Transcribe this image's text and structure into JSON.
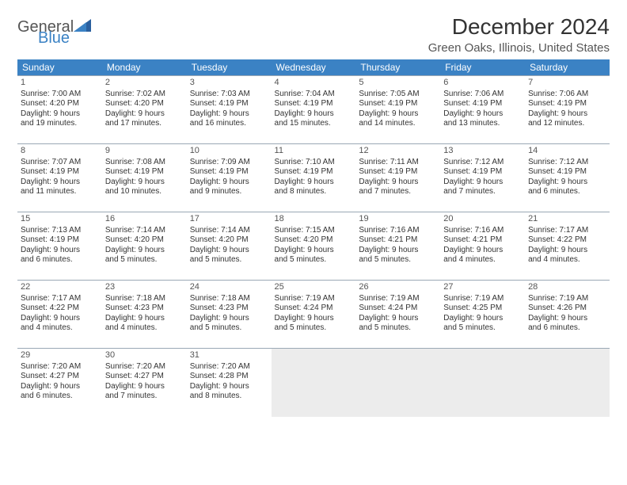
{
  "brand": {
    "word1": "General",
    "word2": "Blue"
  },
  "title": "December 2024",
  "location": "Green Oaks, Illinois, United States",
  "colors": {
    "header_bg": "#3b82c4",
    "header_text": "#ffffff",
    "border": "#9aa8b5",
    "empty_bg": "#ececec",
    "body_text": "#333333",
    "muted_text": "#555555",
    "brand_blue": "#3b82c4"
  },
  "weekdays": [
    "Sunday",
    "Monday",
    "Tuesday",
    "Wednesday",
    "Thursday",
    "Friday",
    "Saturday"
  ],
  "weeks": [
    [
      {
        "day": "1",
        "sunrise": "Sunrise: 7:00 AM",
        "sunset": "Sunset: 4:20 PM",
        "daylight1": "Daylight: 9 hours",
        "daylight2": "and 19 minutes."
      },
      {
        "day": "2",
        "sunrise": "Sunrise: 7:02 AM",
        "sunset": "Sunset: 4:20 PM",
        "daylight1": "Daylight: 9 hours",
        "daylight2": "and 17 minutes."
      },
      {
        "day": "3",
        "sunrise": "Sunrise: 7:03 AM",
        "sunset": "Sunset: 4:19 PM",
        "daylight1": "Daylight: 9 hours",
        "daylight2": "and 16 minutes."
      },
      {
        "day": "4",
        "sunrise": "Sunrise: 7:04 AM",
        "sunset": "Sunset: 4:19 PM",
        "daylight1": "Daylight: 9 hours",
        "daylight2": "and 15 minutes."
      },
      {
        "day": "5",
        "sunrise": "Sunrise: 7:05 AM",
        "sunset": "Sunset: 4:19 PM",
        "daylight1": "Daylight: 9 hours",
        "daylight2": "and 14 minutes."
      },
      {
        "day": "6",
        "sunrise": "Sunrise: 7:06 AM",
        "sunset": "Sunset: 4:19 PM",
        "daylight1": "Daylight: 9 hours",
        "daylight2": "and 13 minutes."
      },
      {
        "day": "7",
        "sunrise": "Sunrise: 7:06 AM",
        "sunset": "Sunset: 4:19 PM",
        "daylight1": "Daylight: 9 hours",
        "daylight2": "and 12 minutes."
      }
    ],
    [
      {
        "day": "8",
        "sunrise": "Sunrise: 7:07 AM",
        "sunset": "Sunset: 4:19 PM",
        "daylight1": "Daylight: 9 hours",
        "daylight2": "and 11 minutes."
      },
      {
        "day": "9",
        "sunrise": "Sunrise: 7:08 AM",
        "sunset": "Sunset: 4:19 PM",
        "daylight1": "Daylight: 9 hours",
        "daylight2": "and 10 minutes."
      },
      {
        "day": "10",
        "sunrise": "Sunrise: 7:09 AM",
        "sunset": "Sunset: 4:19 PM",
        "daylight1": "Daylight: 9 hours",
        "daylight2": "and 9 minutes."
      },
      {
        "day": "11",
        "sunrise": "Sunrise: 7:10 AM",
        "sunset": "Sunset: 4:19 PM",
        "daylight1": "Daylight: 9 hours",
        "daylight2": "and 8 minutes."
      },
      {
        "day": "12",
        "sunrise": "Sunrise: 7:11 AM",
        "sunset": "Sunset: 4:19 PM",
        "daylight1": "Daylight: 9 hours",
        "daylight2": "and 7 minutes."
      },
      {
        "day": "13",
        "sunrise": "Sunrise: 7:12 AM",
        "sunset": "Sunset: 4:19 PM",
        "daylight1": "Daylight: 9 hours",
        "daylight2": "and 7 minutes."
      },
      {
        "day": "14",
        "sunrise": "Sunrise: 7:12 AM",
        "sunset": "Sunset: 4:19 PM",
        "daylight1": "Daylight: 9 hours",
        "daylight2": "and 6 minutes."
      }
    ],
    [
      {
        "day": "15",
        "sunrise": "Sunrise: 7:13 AM",
        "sunset": "Sunset: 4:19 PM",
        "daylight1": "Daylight: 9 hours",
        "daylight2": "and 6 minutes."
      },
      {
        "day": "16",
        "sunrise": "Sunrise: 7:14 AM",
        "sunset": "Sunset: 4:20 PM",
        "daylight1": "Daylight: 9 hours",
        "daylight2": "and 5 minutes."
      },
      {
        "day": "17",
        "sunrise": "Sunrise: 7:14 AM",
        "sunset": "Sunset: 4:20 PM",
        "daylight1": "Daylight: 9 hours",
        "daylight2": "and 5 minutes."
      },
      {
        "day": "18",
        "sunrise": "Sunrise: 7:15 AM",
        "sunset": "Sunset: 4:20 PM",
        "daylight1": "Daylight: 9 hours",
        "daylight2": "and 5 minutes."
      },
      {
        "day": "19",
        "sunrise": "Sunrise: 7:16 AM",
        "sunset": "Sunset: 4:21 PM",
        "daylight1": "Daylight: 9 hours",
        "daylight2": "and 5 minutes."
      },
      {
        "day": "20",
        "sunrise": "Sunrise: 7:16 AM",
        "sunset": "Sunset: 4:21 PM",
        "daylight1": "Daylight: 9 hours",
        "daylight2": "and 4 minutes."
      },
      {
        "day": "21",
        "sunrise": "Sunrise: 7:17 AM",
        "sunset": "Sunset: 4:22 PM",
        "daylight1": "Daylight: 9 hours",
        "daylight2": "and 4 minutes."
      }
    ],
    [
      {
        "day": "22",
        "sunrise": "Sunrise: 7:17 AM",
        "sunset": "Sunset: 4:22 PM",
        "daylight1": "Daylight: 9 hours",
        "daylight2": "and 4 minutes."
      },
      {
        "day": "23",
        "sunrise": "Sunrise: 7:18 AM",
        "sunset": "Sunset: 4:23 PM",
        "daylight1": "Daylight: 9 hours",
        "daylight2": "and 4 minutes."
      },
      {
        "day": "24",
        "sunrise": "Sunrise: 7:18 AM",
        "sunset": "Sunset: 4:23 PM",
        "daylight1": "Daylight: 9 hours",
        "daylight2": "and 5 minutes."
      },
      {
        "day": "25",
        "sunrise": "Sunrise: 7:19 AM",
        "sunset": "Sunset: 4:24 PM",
        "daylight1": "Daylight: 9 hours",
        "daylight2": "and 5 minutes."
      },
      {
        "day": "26",
        "sunrise": "Sunrise: 7:19 AM",
        "sunset": "Sunset: 4:24 PM",
        "daylight1": "Daylight: 9 hours",
        "daylight2": "and 5 minutes."
      },
      {
        "day": "27",
        "sunrise": "Sunrise: 7:19 AM",
        "sunset": "Sunset: 4:25 PM",
        "daylight1": "Daylight: 9 hours",
        "daylight2": "and 5 minutes."
      },
      {
        "day": "28",
        "sunrise": "Sunrise: 7:19 AM",
        "sunset": "Sunset: 4:26 PM",
        "daylight1": "Daylight: 9 hours",
        "daylight2": "and 6 minutes."
      }
    ],
    [
      {
        "day": "29",
        "sunrise": "Sunrise: 7:20 AM",
        "sunset": "Sunset: 4:27 PM",
        "daylight1": "Daylight: 9 hours",
        "daylight2": "and 6 minutes."
      },
      {
        "day": "30",
        "sunrise": "Sunrise: 7:20 AM",
        "sunset": "Sunset: 4:27 PM",
        "daylight1": "Daylight: 9 hours",
        "daylight2": "and 7 minutes."
      },
      {
        "day": "31",
        "sunrise": "Sunrise: 7:20 AM",
        "sunset": "Sunset: 4:28 PM",
        "daylight1": "Daylight: 9 hours",
        "daylight2": "and 8 minutes."
      },
      null,
      null,
      null,
      null
    ]
  ]
}
